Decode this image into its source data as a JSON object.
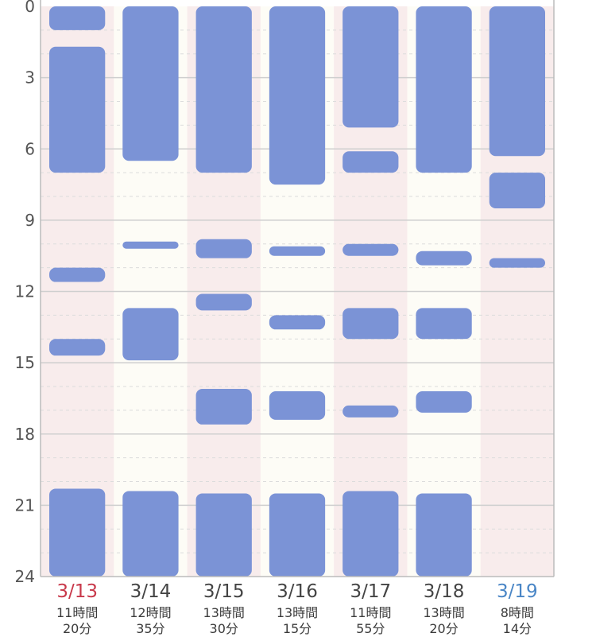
{
  "chart_data": {
    "type": "bar",
    "orientation": "vertical-range",
    "y_axis": {
      "min": 0,
      "max": 24,
      "reversed": true,
      "major_ticks": [
        0,
        3,
        6,
        9,
        12,
        15,
        18,
        21,
        24
      ],
      "tick_labels": [
        "0",
        "3",
        "6",
        "9",
        "12",
        "15",
        "18",
        "21",
        "24"
      ],
      "minor_grid_step": 1,
      "grid": true
    },
    "columns": [
      {
        "date": "3/13",
        "duration_line1": "11時間",
        "duration_line2": "20分",
        "date_color": "#c8394b",
        "background": "#f8ecec",
        "sleep_blocks": [
          [
            0,
            1
          ],
          [
            1.7,
            7
          ],
          [
            11,
            11.6
          ],
          [
            14,
            14.7
          ],
          [
            20.3,
            24
          ]
        ]
      },
      {
        "date": "3/14",
        "duration_line1": "12時間",
        "duration_line2": "35分",
        "date_color": "#444444",
        "background": "#fdfcf6",
        "sleep_blocks": [
          [
            0,
            6.5
          ],
          [
            9.9,
            10.2
          ],
          [
            12.7,
            14.9
          ],
          [
            20.4,
            24
          ]
        ]
      },
      {
        "date": "3/15",
        "duration_line1": "13時間",
        "duration_line2": "30分",
        "date_color": "#444444",
        "background": "#f8ecec",
        "sleep_blocks": [
          [
            0,
            7
          ],
          [
            9.8,
            10.6
          ],
          [
            12.1,
            12.8
          ],
          [
            16.1,
            17.6
          ],
          [
            20.5,
            24
          ]
        ]
      },
      {
        "date": "3/16",
        "duration_line1": "13時間",
        "duration_line2": "15分",
        "date_color": "#444444",
        "background": "#fdfcf6",
        "sleep_blocks": [
          [
            0,
            7.5
          ],
          [
            10.1,
            10.5
          ],
          [
            13,
            13.6
          ],
          [
            16.2,
            17.4
          ],
          [
            20.5,
            24
          ]
        ]
      },
      {
        "date": "3/17",
        "duration_line1": "11時間",
        "duration_line2": "55分",
        "date_color": "#444444",
        "background": "#f8ecec",
        "sleep_blocks": [
          [
            0,
            5.1
          ],
          [
            6.1,
            7
          ],
          [
            10,
            10.5
          ],
          [
            12.7,
            14
          ],
          [
            16.8,
            17.3
          ],
          [
            20.4,
            24
          ]
        ]
      },
      {
        "date": "3/18",
        "duration_line1": "13時間",
        "duration_line2": "20分",
        "date_color": "#444444",
        "background": "#fdfcf6",
        "sleep_blocks": [
          [
            0,
            7
          ],
          [
            10.3,
            10.9
          ],
          [
            12.7,
            14
          ],
          [
            16.2,
            17.1
          ],
          [
            20.5,
            24
          ]
        ]
      },
      {
        "date": "3/19",
        "duration_line1": "8時間",
        "duration_line2": "14分",
        "date_color": "#4a86c6",
        "background": "#f8ecec",
        "sleep_blocks": [
          [
            0,
            6.3
          ],
          [
            7,
            8.5
          ],
          [
            10.6,
            11
          ]
        ]
      }
    ]
  },
  "colors": {
    "bar": "#7b93d6",
    "grid_major": "#cfcfcf",
    "grid_minor": "#dcdcdc",
    "axis_label": "#555555",
    "duration_text": "#3a3a3a"
  }
}
